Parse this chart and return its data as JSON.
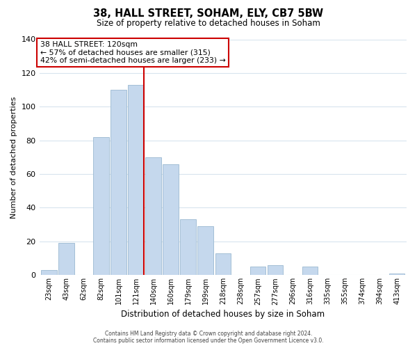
{
  "title": "38, HALL STREET, SOHAM, ELY, CB7 5BW",
  "subtitle": "Size of property relative to detached houses in Soham",
  "xlabel": "Distribution of detached houses by size in Soham",
  "ylabel": "Number of detached properties",
  "categories": [
    "23sqm",
    "43sqm",
    "62sqm",
    "82sqm",
    "101sqm",
    "121sqm",
    "140sqm",
    "160sqm",
    "179sqm",
    "199sqm",
    "218sqm",
    "238sqm",
    "257sqm",
    "277sqm",
    "296sqm",
    "316sqm",
    "335sqm",
    "355sqm",
    "374sqm",
    "394sqm",
    "413sqm"
  ],
  "values": [
    3,
    19,
    0,
    82,
    110,
    113,
    70,
    66,
    33,
    29,
    13,
    0,
    5,
    6,
    0,
    5,
    0,
    0,
    0,
    0,
    1
  ],
  "bar_color": "#c5d8ed",
  "bar_edge_color": "#9ab8d0",
  "highlight_index": 5,
  "highlight_line_color": "#cc0000",
  "ylim": [
    0,
    140
  ],
  "yticks": [
    0,
    20,
    40,
    60,
    80,
    100,
    120,
    140
  ],
  "annotation_title": "38 HALL STREET: 120sqm",
  "annotation_line1": "← 57% of detached houses are smaller (315)",
  "annotation_line2": "42% of semi-detached houses are larger (233) →",
  "annotation_box_color": "#ffffff",
  "annotation_box_edge_color": "#cc0000",
  "footer_line1": "Contains HM Land Registry data © Crown copyright and database right 2024.",
  "footer_line2": "Contains public sector information licensed under the Open Government Licence v3.0.",
  "background_color": "#ffffff",
  "grid_color": "#d8e4ee"
}
